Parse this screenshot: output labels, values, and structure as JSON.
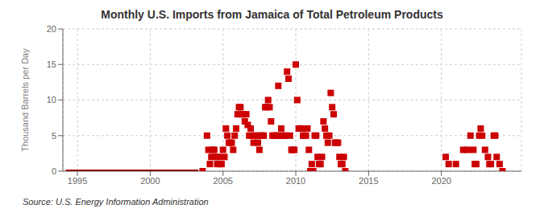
{
  "chart_data": {
    "type": "scatter",
    "title": "Monthly U.S. Imports from Jamaica of Total Petroleum Products",
    "ylabel": "Thousand Barrels per Day",
    "annotation": "Source: U.S. Energy Information Administration",
    "xlim": [
      1994.0,
      2025.5
    ],
    "ylim": [
      0,
      20
    ],
    "xticks": [
      1995,
      2000,
      2005,
      2010,
      2015,
      2020
    ],
    "yticks": [
      0,
      5,
      10,
      15,
      20
    ],
    "grid": true,
    "series": [
      {
        "type": "line",
        "color": "#8b0000",
        "x": [
          1994.2,
          2003.3
        ],
        "values": [
          0,
          0
        ]
      },
      {
        "type": "scatter",
        "color": "#cc0000",
        "marker": "square",
        "x": [
          2003.6,
          2003.9,
          2004.0,
          2004.1,
          2004.2,
          2004.3,
          2004.4,
          2004.5,
          2004.6,
          2004.7,
          2004.8,
          2004.9,
          2005.0,
          2005.1,
          2005.2,
          2005.3,
          2005.4,
          2005.5,
          2005.6,
          2005.7,
          2005.8,
          2005.9,
          2006.0,
          2006.1,
          2006.2,
          2006.3,
          2006.4,
          2006.5,
          2006.6,
          2006.7,
          2006.8,
          2006.9,
          2007.0,
          2007.1,
          2007.2,
          2007.3,
          2007.4,
          2007.5,
          2007.6,
          2007.7,
          2007.8,
          2007.9,
          2008.0,
          2008.1,
          2008.2,
          2008.3,
          2008.4,
          2008.5,
          2008.6,
          2008.7,
          2008.8,
          2008.9,
          2009.0,
          2009.1,
          2009.2,
          2009.3,
          2009.4,
          2009.5,
          2009.6,
          2009.7,
          2009.8,
          2009.9,
          2010.0,
          2010.1,
          2010.2,
          2010.3,
          2010.4,
          2010.5,
          2010.6,
          2010.7,
          2010.8,
          2010.9,
          2011.0,
          2011.1,
          2011.2,
          2011.3,
          2011.4,
          2011.5,
          2011.6,
          2011.7,
          2011.8,
          2011.9,
          2012.0,
          2012.1,
          2012.2,
          2012.3,
          2012.4,
          2012.5,
          2012.6,
          2012.7,
          2012.8,
          2012.9,
          2013.0,
          2013.1,
          2013.2,
          2013.3,
          2013.4,
          2020.3,
          2020.5,
          2021.0,
          2021.5,
          2021.8,
          2022.0,
          2022.2,
          2022.3,
          2022.4,
          2022.6,
          2022.7,
          2022.8,
          2023.0,
          2023.2,
          2023.3,
          2023.4,
          2023.6,
          2023.7,
          2023.8,
          2024.0,
          2024.2
        ],
        "values": [
          0.0,
          5.0,
          3.0,
          1.0,
          2.0,
          3.0,
          3.0,
          2.0,
          1.0,
          2.0,
          1.0,
          1.0,
          3.0,
          2.0,
          6.0,
          5.0,
          4.0,
          4.0,
          4.0,
          3.0,
          5.0,
          6.0,
          8.0,
          9.0,
          9.0,
          8.0,
          8.0,
          7.0,
          8.0,
          6.5,
          5.0,
          6.0,
          5.0,
          4.0,
          5.0,
          5.0,
          4.0,
          3.0,
          5.0,
          5.0,
          5.0,
          9.0,
          9.0,
          10.0,
          9.0,
          7.0,
          5.0,
          5.0,
          5.0,
          5.0,
          12.0,
          5.0,
          6.0,
          5.0,
          5.0,
          5.0,
          14.0,
          13.0,
          5.0,
          3.0,
          3.0,
          3.0,
          15.0,
          10.0,
          6.0,
          6.0,
          6.0,
          5.0,
          5.0,
          5.0,
          6.0,
          3.0,
          0.0,
          1.0,
          0.0,
          5.0,
          5.0,
          2.0,
          1.0,
          1.0,
          2.0,
          7.0,
          6.0,
          5.0,
          4.0,
          5.0,
          11.0,
          9.0,
          8.0,
          4.0,
          4.0,
          4.0,
          2.0,
          1.0,
          1.0,
          2.0,
          0.0,
          2.0,
          1.0,
          1.0,
          3.0,
          3.0,
          5.0,
          3.0,
          1.0,
          1.0,
          5.0,
          6.0,
          5.0,
          3.0,
          2.0,
          1.0,
          1.0,
          5.0,
          5.0,
          2.0,
          1.0,
          0.0
        ]
      }
    ]
  }
}
